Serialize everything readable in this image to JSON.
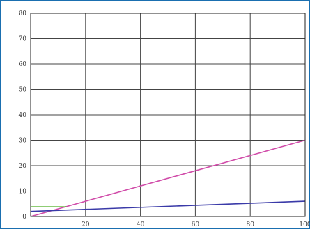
{
  "chart_data": {
    "type": "line",
    "title": "",
    "xlabel": "",
    "ylabel": "",
    "xlim": [
      0,
      100
    ],
    "ylim": [
      0,
      80
    ],
    "x_ticks": [
      20,
      40,
      60,
      80,
      100
    ],
    "x_tick_labels": [
      "20",
      "40",
      "60",
      "80",
      "100"
    ],
    "y_ticks": [
      0,
      10,
      20,
      30,
      40,
      50,
      60,
      70,
      80
    ],
    "y_tick_labels": [
      "0",
      "10",
      "20",
      "30",
      "40",
      "50",
      "60",
      "70",
      "80"
    ],
    "grid": true,
    "series": [
      {
        "color": "#d04aa8",
        "x": [
          0,
          100
        ],
        "y": [
          0,
          30
        ]
      },
      {
        "color": "#3a3aa8",
        "x": [
          0,
          100
        ],
        "y": [
          2,
          6
        ]
      },
      {
        "color": "#4caf20",
        "x": [
          0,
          13
        ],
        "y": [
          3.8,
          3.8
        ]
      }
    ]
  }
}
